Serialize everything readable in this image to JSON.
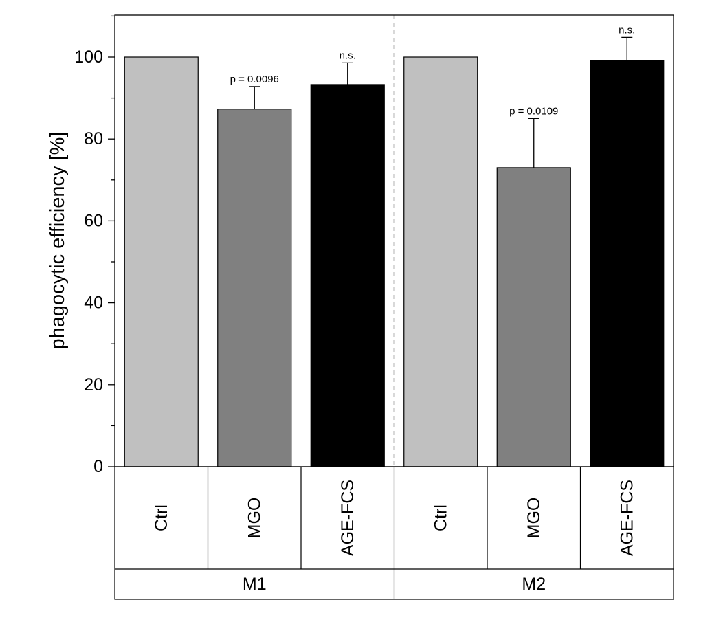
{
  "chart_data": {
    "type": "bar",
    "ylabel": "phagocytic efficiency [%]",
    "ylim": [
      0,
      110
    ],
    "yticks": [
      0,
      20,
      40,
      60,
      80,
      100
    ],
    "grid": false,
    "legend": "none",
    "groups": [
      {
        "label": "M1",
        "bars": [
          {
            "category": "Ctrl",
            "value": 100,
            "error": 0,
            "annotation": "",
            "color": "#c0c0c0"
          },
          {
            "category": "MGO",
            "value": 87.3,
            "error": 5.5,
            "annotation": "p = 0.0096",
            "color": "#808080"
          },
          {
            "category": "AGE-FCS",
            "value": 93.3,
            "error": 5.3,
            "annotation": "n.s.",
            "color": "#000000"
          }
        ]
      },
      {
        "label": "M2",
        "bars": [
          {
            "category": "Ctrl",
            "value": 100,
            "error": 0,
            "annotation": "",
            "color": "#c0c0c0"
          },
          {
            "category": "MGO",
            "value": 73,
            "error": 12,
            "annotation": "p = 0.0109",
            "color": "#808080"
          },
          {
            "category": "AGE-FCS",
            "value": 99.2,
            "error": 5.6,
            "annotation": "n.s.",
            "color": "#000000"
          }
        ]
      }
    ]
  }
}
